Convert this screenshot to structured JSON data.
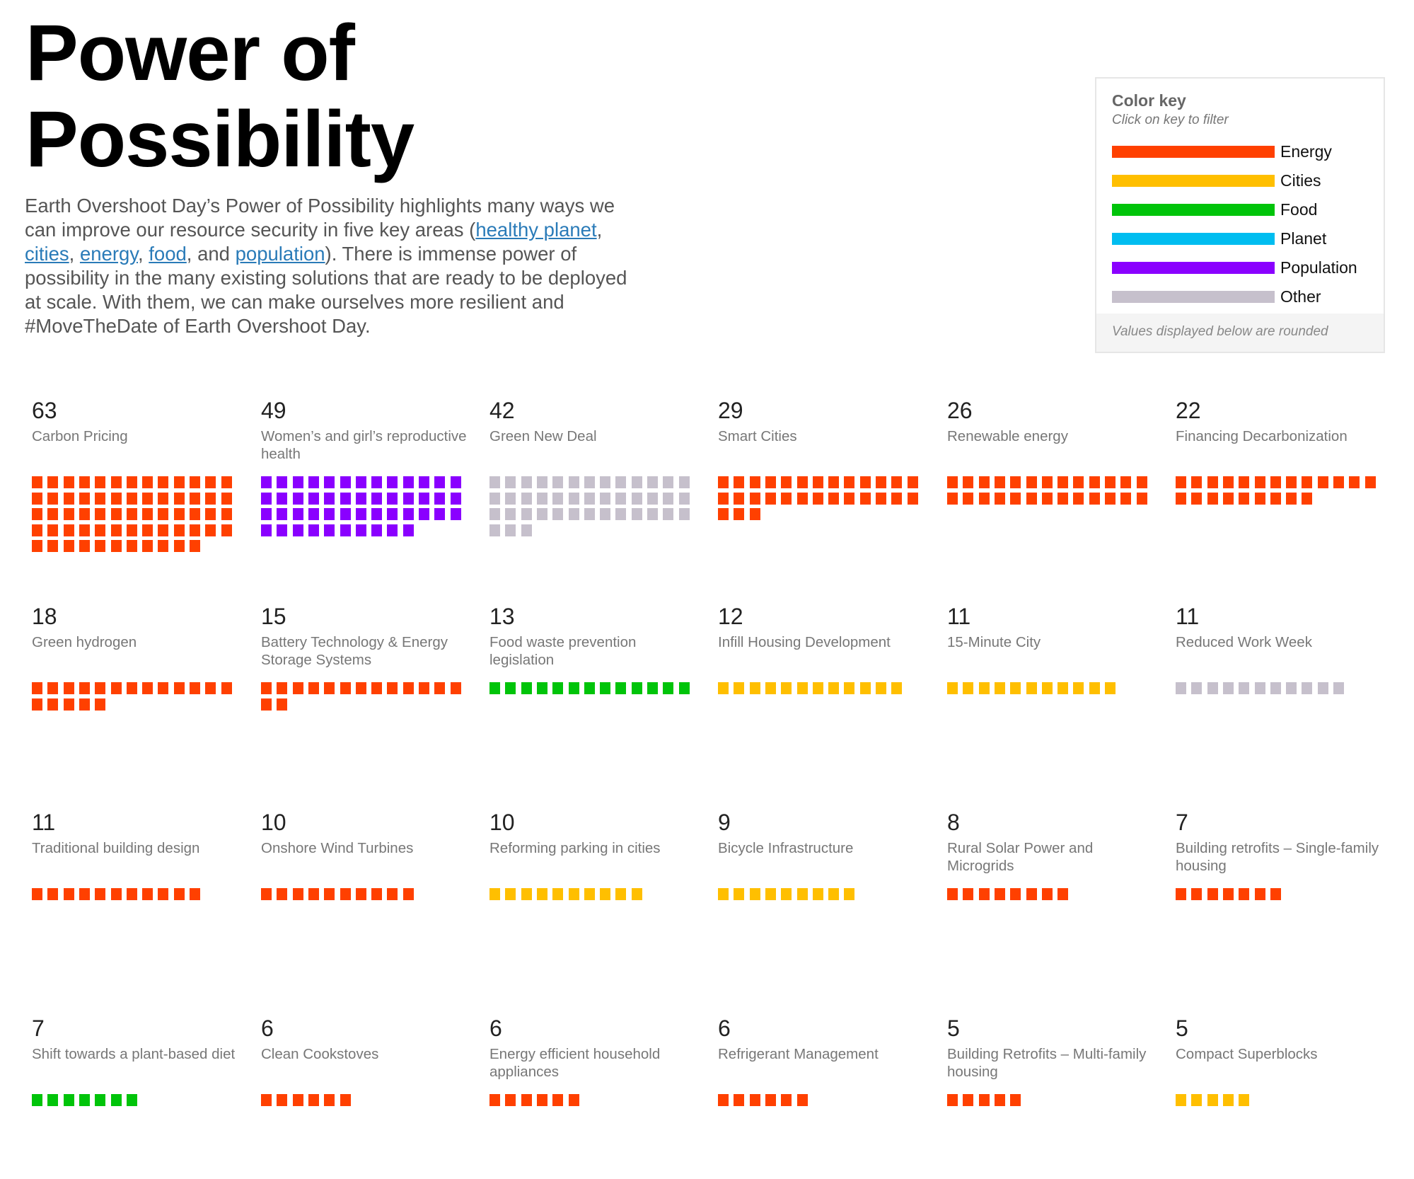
{
  "title": "Power of Possibility",
  "intro": {
    "before": "Earth Overshoot Day’s Power of Possibility highlights many ways we can improve our resource security in five key areas (",
    "links": [
      "healthy planet",
      "cities",
      "energy",
      "food",
      "population"
    ],
    "seps": [
      ", ",
      ", ",
      ", ",
      ", and "
    ],
    "after": "). There is immense power of possibility in the many existing solutions that are ready to be deployed at scale. With them, we can make ourselves more resilient and #MoveTheDate of Earth Overshoot Day."
  },
  "legend": {
    "title": "Color key",
    "subtitle": "Click on key to filter",
    "items": [
      {
        "label": "Energy",
        "color": "#ff4000"
      },
      {
        "label": "Cities",
        "color": "#ffbf00"
      },
      {
        "label": "Food",
        "color": "#00c40a"
      },
      {
        "label": "Planet",
        "color": "#00bdf0"
      },
      {
        "label": "Population",
        "color": "#8a00ff"
      },
      {
        "label": "Other",
        "color": "#c6c0cc"
      }
    ],
    "footer": "Values displayed below are rounded"
  },
  "chart_data": {
    "type": "waffle",
    "units_per_row": 13,
    "items": [
      {
        "value": 63,
        "label": "Carbon Pricing",
        "category": "Energy"
      },
      {
        "value": 49,
        "label": "Women’s and girl’s reproductive health",
        "category": "Population"
      },
      {
        "value": 42,
        "label": "Green New Deal",
        "category": "Other"
      },
      {
        "value": 29,
        "label": "Smart Cities",
        "category": "Energy"
      },
      {
        "value": 26,
        "label": "Renewable energy",
        "category": "Energy"
      },
      {
        "value": 22,
        "label": "Financing Decarbonization",
        "category": "Energy"
      },
      {
        "value": 18,
        "label": "Green hydrogen",
        "category": "Energy"
      },
      {
        "value": 15,
        "label": "Battery Technology & Energy Storage Systems",
        "category": "Energy"
      },
      {
        "value": 13,
        "label": "Food waste prevention legislation",
        "category": "Food"
      },
      {
        "value": 12,
        "label": "Infill Housing Development",
        "category": "Cities"
      },
      {
        "value": 11,
        "label": "15-Minute City",
        "category": "Cities"
      },
      {
        "value": 11,
        "label": "Reduced Work Week",
        "category": "Other"
      },
      {
        "value": 11,
        "label": "Traditional building design",
        "category": "Energy"
      },
      {
        "value": 10,
        "label": "Onshore Wind Turbines",
        "category": "Energy"
      },
      {
        "value": 10,
        "label": "Reforming parking in cities",
        "category": "Cities"
      },
      {
        "value": 9,
        "label": "Bicycle Infrastructure",
        "category": "Cities"
      },
      {
        "value": 8,
        "label": "Rural Solar Power and Microgrids",
        "category": "Energy"
      },
      {
        "value": 7,
        "label": "Building retrofits – Single-family housing",
        "category": "Energy"
      },
      {
        "value": 7,
        "label": "Shift towards a plant-based diet",
        "category": "Food"
      },
      {
        "value": 6,
        "label": "Clean Cookstoves",
        "category": "Energy"
      },
      {
        "value": 6,
        "label": "Energy efficient household appliances",
        "category": "Energy"
      },
      {
        "value": 6,
        "label": "Refrigerant Management",
        "category": "Energy"
      },
      {
        "value": 5,
        "label": "Building Retrofits – Multi-family housing",
        "category": "Energy"
      },
      {
        "value": 5,
        "label": "Compact Superblocks",
        "category": "Cities"
      }
    ]
  }
}
